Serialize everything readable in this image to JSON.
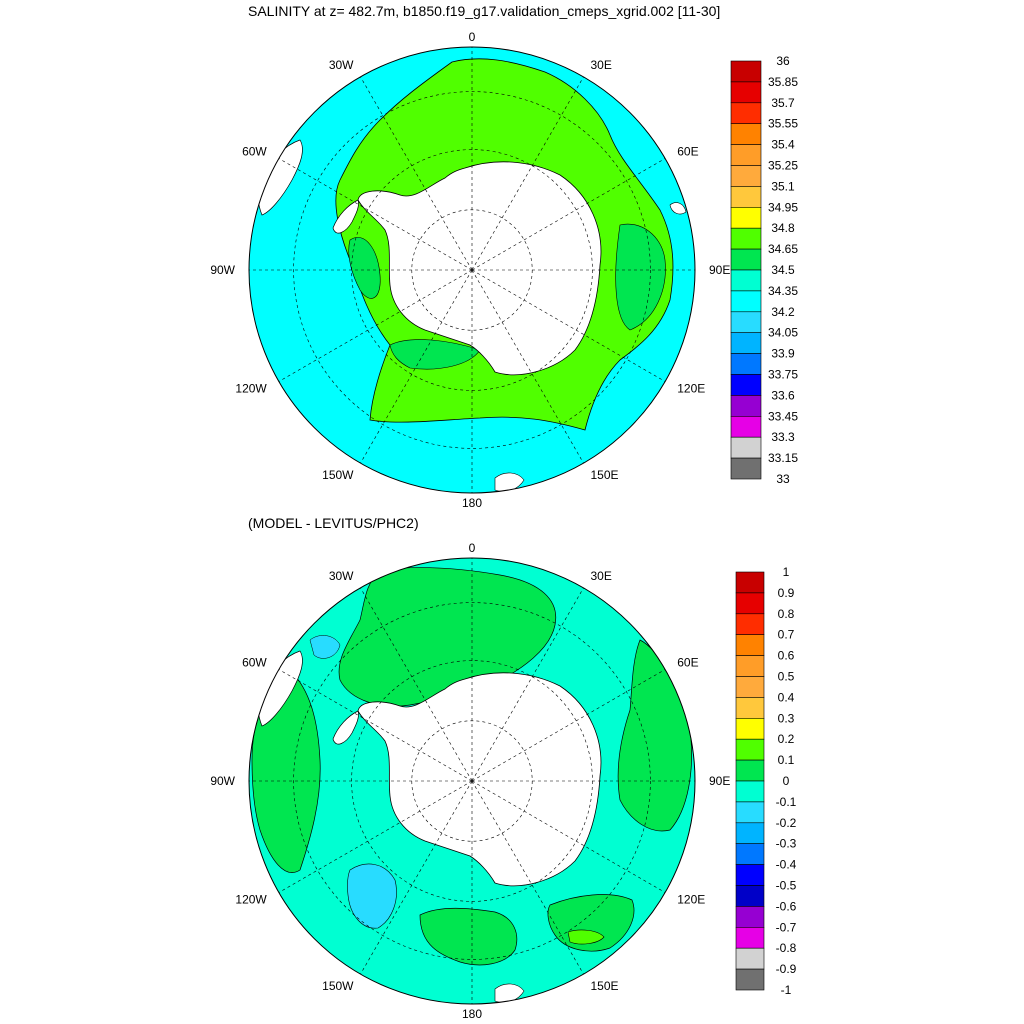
{
  "top_panel": {
    "title": "SALINITY at z= 482.7m, b1850.f19_g17.validation_cmeps_xgrid.002 [11-30]",
    "lon_labels": [
      "0",
      "30E",
      "60E",
      "90E",
      "120E",
      "150E",
      "180",
      "150W",
      "120W",
      "90W",
      "60W",
      "30W"
    ],
    "colorbar": {
      "labels": [
        "36",
        "35.85",
        "35.7",
        "35.55",
        "35.4",
        "35.25",
        "35.1",
        "34.95",
        "34.8",
        "34.65",
        "34.5",
        "34.35",
        "34.2",
        "34.05",
        "33.9",
        "33.75",
        "33.6",
        "33.45",
        "33.3",
        "33.15",
        "33"
      ],
      "colors": [
        "#c80000",
        "#e60000",
        "#ff2d00",
        "#ff8200",
        "#ff9d28",
        "#ffaa3c",
        "#ffc83c",
        "#ffff00",
        "#50ff00",
        "#00e650",
        "#00ffd2",
        "#00ffff",
        "#28dcff",
        "#00b4ff",
        "#0078ff",
        "#0000ff",
        "#9600d2",
        "#e600e6",
        "#d2d2d2",
        "#707070"
      ]
    }
  },
  "bottom_panel": {
    "title": "(MODEL - LEVITUS/PHC2)",
    "lon_labels": [
      "0",
      "30E",
      "60E",
      "90E",
      "120E",
      "150E",
      "180",
      "150W",
      "120W",
      "90W",
      "60W",
      "30W"
    ],
    "colorbar": {
      "labels": [
        "1",
        "0.9",
        "0.8",
        "0.7",
        "0.6",
        "0.5",
        "0.4",
        "0.3",
        "0.2",
        "0.1",
        "0",
        "-0.1",
        "-0.2",
        "-0.3",
        "-0.4",
        "-0.5",
        "-0.6",
        "-0.7",
        "-0.8",
        "-0.9",
        "-1"
      ],
      "colors": [
        "#c80000",
        "#e60000",
        "#ff2d00",
        "#ff8200",
        "#ff9d28",
        "#ffaa3c",
        "#ffc83c",
        "#ffff00",
        "#50ff00",
        "#00e650",
        "#00ffd2",
        "#28dcff",
        "#00b4ff",
        "#0078ff",
        "#0000ff",
        "#0000c8",
        "#9600d2",
        "#e600e6",
        "#d2d2d2",
        "#707070"
      ]
    }
  }
}
